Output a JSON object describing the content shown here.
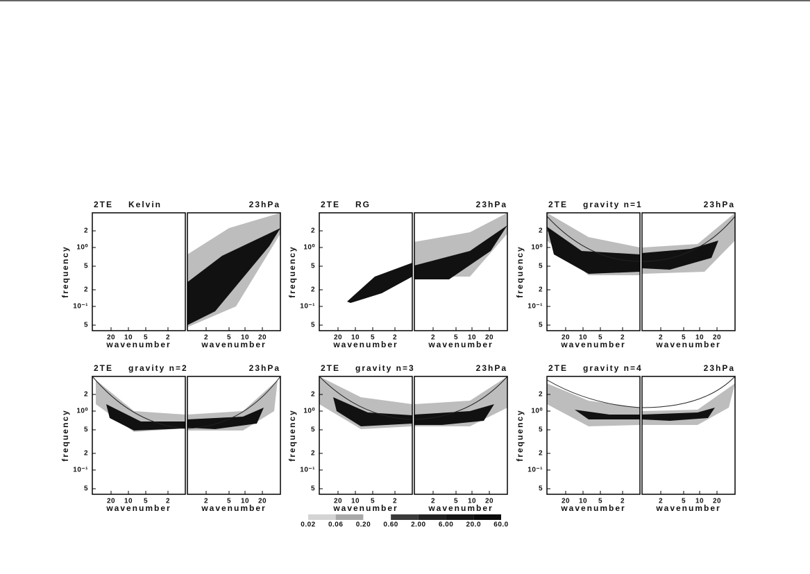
{
  "panels": [
    {
      "prefix": "2TE",
      "title": "Kelvin",
      "level": "23hPa"
    },
    {
      "prefix": "2TE",
      "title": "RG",
      "level": "23hPa"
    },
    {
      "prefix": "2TE",
      "title": "gravity  n=1",
      "level": "23hPa"
    },
    {
      "prefix": "2TE",
      "title": "gravity  n=2",
      "level": "23hPa"
    },
    {
      "prefix": "2TE",
      "title": "gravity  n=3",
      "level": "23hPa"
    },
    {
      "prefix": "2TE",
      "title": "gravity  n=4",
      "level": "23hPa"
    }
  ],
  "y_label": "frequency",
  "x_label": "wavenumber",
  "y_tick_labels": [
    "2",
    "10⁰",
    "5",
    "2",
    "10⁻¹",
    "5"
  ],
  "x_tick_labels_left": [
    "20",
    "10",
    "5",
    "2"
  ],
  "x_tick_labels_right": [
    "2",
    "5",
    "10",
    "20"
  ],
  "colorbar": {
    "labels": [
      "0.02",
      "0.06",
      "0.20",
      "0.60",
      "2.00",
      "6.00",
      "20.0",
      "60.0"
    ]
  }
}
